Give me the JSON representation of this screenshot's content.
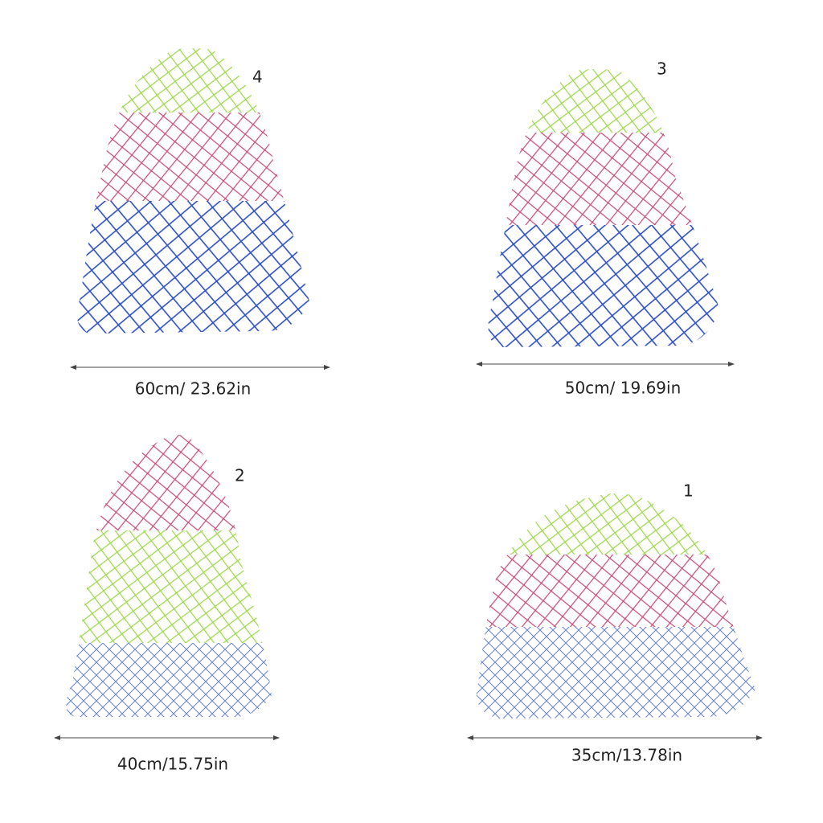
{
  "items": [
    {
      "number": "4",
      "size": "60cm/ 23.62in"
    },
    {
      "number": "3",
      "size": "50cm/ 19.69in"
    },
    {
      "number": "2",
      "size": "40cm/15.75in"
    },
    {
      "number": "1",
      "size": "35cm/13.78in"
    }
  ]
}
